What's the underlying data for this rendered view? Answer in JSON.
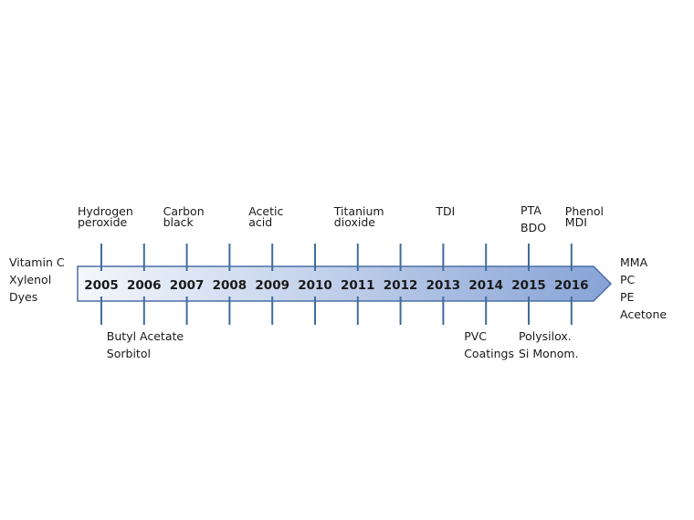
{
  "timeline": {
    "years": [
      "2005",
      "2006",
      "2007",
      "2008",
      "2009",
      "2010",
      "2011",
      "2012",
      "2013",
      "2014",
      "2015",
      "2016"
    ],
    "colors": {
      "arrow_light": "#f4f7fc",
      "arrow_dark": "#87a3d6",
      "arrow_stroke": "#4a6fa5",
      "tick": "#3e6d9c"
    }
  },
  "before": {
    "lines": [
      "Vitamin C",
      "Xylenol",
      "Dyes"
    ]
  },
  "after": {
    "lines": [
      "MMA",
      "PC",
      "PE",
      "Acetone"
    ]
  },
  "above": [
    {
      "year": "2005",
      "lines": [
        "Hydrogen",
        "peroxide"
      ]
    },
    {
      "year": "2007",
      "lines": [
        "Carbon",
        "black"
      ]
    },
    {
      "year": "2009",
      "lines": [
        "Acetic",
        "acid"
      ]
    },
    {
      "year": "2011",
      "lines": [
        "Titanium",
        "dioxide"
      ]
    },
    {
      "year": "2013",
      "lines": [
        "TDI"
      ]
    },
    {
      "year": "2015",
      "lines": [
        "PTA",
        "BDO"
      ]
    },
    {
      "year": "2016",
      "lines": [
        "Phenol",
        "MDI"
      ]
    }
  ],
  "below": [
    {
      "year": "2006",
      "lines": [
        "Butyl Acetate",
        "Sorbitol"
      ]
    },
    {
      "year": "2014",
      "lines": [
        "PVC",
        "Coatings"
      ]
    },
    {
      "year": "2015",
      "lines": [
        "Polysilox.",
        "Si Monom."
      ]
    }
  ]
}
